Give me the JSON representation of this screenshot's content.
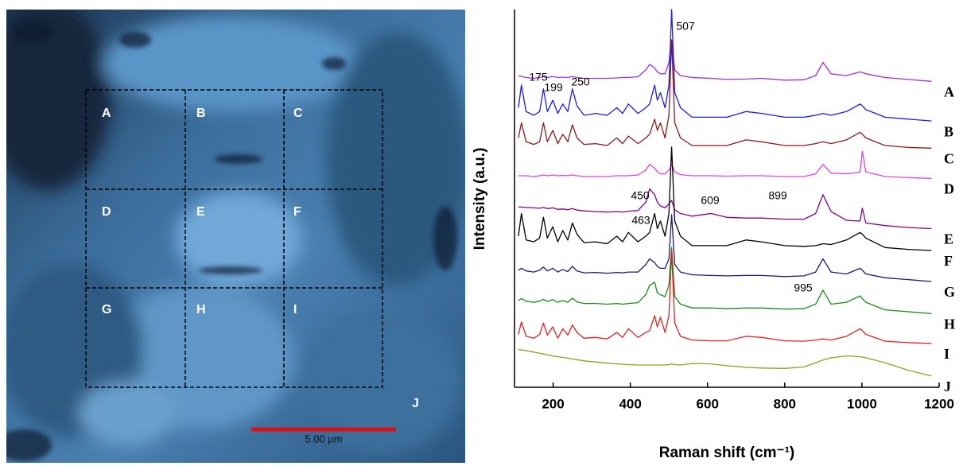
{
  "micrograph": {
    "regions": [
      "A",
      "B",
      "C",
      "D",
      "E",
      "F",
      "G",
      "H",
      "I",
      "J"
    ],
    "scale_bar": "5.00 µm"
  },
  "chart_data": {
    "type": "line",
    "x_label": "Raman shift (cm⁻¹)",
    "y_label": "Intensity (a.u.)",
    "xlim": [
      100,
      1200
    ],
    "xticks": [
      200,
      400,
      600,
      800,
      1000,
      1200
    ],
    "ylim": [
      0,
      100
    ],
    "annotations": [
      "507",
      "175",
      "199",
      "250",
      "450",
      "463",
      "609",
      "899",
      "995"
    ],
    "x": [
      110,
      118,
      130,
      150,
      165,
      175,
      185,
      199,
      212,
      225,
      238,
      250,
      262,
      280,
      310,
      340,
      365,
      380,
      395,
      420,
      440,
      450,
      463,
      470,
      478,
      490,
      500,
      507,
      515,
      530,
      560,
      609,
      650,
      700,
      740,
      800,
      850,
      880,
      899,
      920,
      960,
      995,
      1001,
      1010,
      1060,
      1120,
      1180
    ],
    "series": [
      {
        "name": "A",
        "color": "#9b30d9",
        "values": [
          82.5,
          82.3,
          82,
          81.8,
          82,
          82.2,
          82,
          82.3,
          82,
          82.1,
          82,
          82.3,
          82,
          81.8,
          81.8,
          81.8,
          81.9,
          82,
          82,
          82.2,
          84,
          85.5,
          84.5,
          83.5,
          83,
          83,
          86,
          92,
          84,
          82.5,
          82,
          81.8,
          81.5,
          81.6,
          81.8,
          81.3,
          81.4,
          82.5,
          86,
          83,
          82.5,
          83.5,
          83.3,
          83,
          82,
          81.5,
          81
        ]
      },
      {
        "name": "B",
        "color": "#1a1aff",
        "values": [
          74,
          80,
          73,
          72,
          73,
          79,
          73,
          76,
          72.5,
          75,
          73,
          79,
          74.5,
          72,
          72.5,
          72,
          74,
          72.5,
          75,
          72.5,
          74,
          75,
          80,
          76,
          78,
          74,
          80,
          100,
          78,
          74,
          71.5,
          71.5,
          71.5,
          73,
          72.5,
          71.5,
          71.5,
          72,
          72.5,
          72,
          73,
          75,
          74.5,
          73.5,
          71.5,
          71,
          70.5
        ]
      },
      {
        "name": "C",
        "color": "#8b1a1a",
        "values": [
          66,
          70,
          65,
          64.3,
          65,
          70,
          65,
          68,
          64.5,
          67,
          65,
          69.5,
          66,
          64.3,
          64.5,
          64,
          66,
          64.5,
          66.5,
          64.5,
          66,
          67,
          71,
          68,
          70,
          66,
          72,
          92,
          70,
          66,
          64,
          64,
          64,
          65.5,
          65,
          64,
          64,
          64.5,
          65,
          64.5,
          65.5,
          67.5,
          67,
          66,
          64,
          63.5,
          63.3
        ]
      },
      {
        "name": "D",
        "color": "#e040e0",
        "values": [
          56,
          56,
          56,
          55.8,
          56,
          56.2,
          56,
          56.2,
          56,
          56.1,
          56,
          56.2,
          56,
          55.8,
          55.8,
          55.8,
          56,
          56,
          56,
          56.2,
          57.5,
          59,
          58,
          57,
          56.5,
          56.5,
          57.5,
          59,
          57,
          56.3,
          56,
          56,
          55.9,
          56,
          56,
          55.8,
          55.8,
          56.5,
          59,
          56.7,
          56.5,
          57,
          62.5,
          57,
          55.8,
          55.5,
          55.3
        ]
      },
      {
        "name": "E",
        "color": "#800080",
        "values": [
          47.8,
          47.7,
          47.6,
          47.5,
          47.4,
          47.6,
          47.3,
          47.5,
          47.1,
          47.2,
          47,
          47.3,
          46.9,
          46.7,
          46.5,
          46.4,
          46.5,
          46.4,
          46.6,
          46.8,
          49,
          52.5,
          51,
          49,
          48,
          47.5,
          48.5,
          49.5,
          47,
          46,
          45.3,
          46,
          45,
          44.8,
          44.8,
          44.5,
          44.5,
          46,
          51,
          46.5,
          44.2,
          44,
          47.4,
          43.5,
          42.8,
          42.3,
          42
        ]
      },
      {
        "name": "F",
        "color": "#000000",
        "values": [
          40,
          46,
          39,
          38.5,
          39.5,
          45,
          39.5,
          42.5,
          38.5,
          41.5,
          39,
          43.5,
          40.5,
          38.3,
          38.5,
          38,
          40,
          38.5,
          41,
          38.5,
          40,
          41,
          46,
          42,
          44,
          40,
          46,
          63.6,
          44,
          40,
          37.5,
          37.5,
          37.5,
          39,
          38.5,
          37.5,
          37.3,
          37.5,
          38,
          37.8,
          39,
          41,
          40.5,
          39.5,
          37,
          36.5,
          36.2
        ]
      },
      {
        "name": "G",
        "color": "#1a1a80",
        "values": [
          31,
          31.5,
          30.8,
          30.5,
          31,
          31.8,
          30.8,
          31.5,
          30.5,
          31.2,
          30.6,
          32,
          30.8,
          30.3,
          30.4,
          30.2,
          30.4,
          30.3,
          30.5,
          30.5,
          32.5,
          34,
          33,
          32,
          31.5,
          31.5,
          34,
          45.7,
          32.5,
          30.5,
          29.8,
          29.6,
          29.5,
          29.6,
          29.6,
          29.3,
          29.5,
          30.5,
          34,
          30.5,
          30,
          31.5,
          31,
          30,
          29,
          28.5,
          28
        ]
      },
      {
        "name": "H",
        "color": "#1a8a1a",
        "values": [
          23,
          23.5,
          22.8,
          22.5,
          22.8,
          23.3,
          22.7,
          23.2,
          22.5,
          23,
          22.5,
          23.6,
          22.6,
          22.2,
          22.2,
          22,
          22.2,
          22,
          22.2,
          22.4,
          24.5,
          27,
          27.8,
          25,
          24.5,
          24,
          27,
          37,
          24,
          22,
          21,
          21,
          20.8,
          21,
          21,
          20.7,
          20.8,
          22,
          25.7,
          22,
          22.5,
          24.2,
          23.5,
          22.5,
          20.5,
          20,
          19.5
        ]
      },
      {
        "name": "I",
        "color": "#e02020",
        "values": [
          14,
          17.3,
          13.5,
          13,
          14,
          17,
          13.8,
          16,
          13,
          15.5,
          13.8,
          16.5,
          14.5,
          13,
          13.2,
          12.8,
          14.5,
          13.2,
          15.5,
          13.2,
          14.5,
          15,
          19,
          16,
          18.5,
          14.5,
          19,
          36,
          17,
          13.5,
          12.5,
          12.3,
          12.3,
          13.5,
          13.2,
          12.3,
          12.2,
          12.5,
          12.8,
          12.5,
          13.5,
          15.5,
          15,
          14,
          12.2,
          11.8,
          11.6
        ]
      },
      {
        "name": "J",
        "color": "#9a9a20",
        "values": [
          10,
          9.9,
          9.7,
          9.3,
          9,
          8.8,
          8.6,
          8.3,
          8.1,
          7.9,
          7.7,
          7.5,
          7.3,
          7,
          6.7,
          6.4,
          6.2,
          6.1,
          6,
          5.9,
          5.9,
          5.9,
          5.9,
          5.9,
          5.9,
          5.9,
          6,
          6.2,
          6,
          5.9,
          6.3,
          6.2,
          5.7,
          5.3,
          5.1,
          5,
          5.4,
          6.5,
          7.2,
          7.8,
          8.3,
          8.1,
          8,
          7.8,
          6.5,
          4.5,
          3
        ]
      }
    ]
  }
}
